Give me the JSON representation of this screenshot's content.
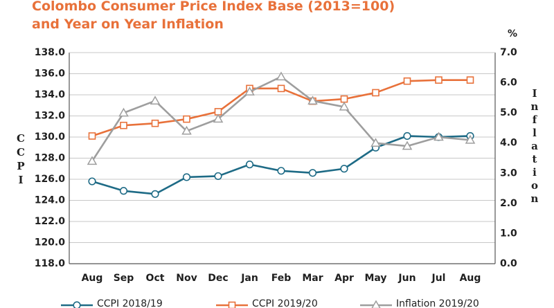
{
  "chart_data": {
    "type": "line",
    "title_lines": [
      "Colombo Consumer Price Index Base (2013=100)",
      "and Year on Year Inflation"
    ],
    "categories": [
      "Aug",
      "Sep",
      "Oct",
      "Nov",
      "Dec",
      "Jan",
      "Feb",
      "Mar",
      "Apr",
      "May",
      "Jun",
      "Jul",
      "Aug"
    ],
    "ylabel": "CCPI",
    "y2label": "Inflation",
    "y2unit": "%",
    "ylim": [
      118,
      138
    ],
    "y2lim": [
      0,
      7
    ],
    "yticks": [
      "118.0",
      "120.0",
      "122.0",
      "124.0",
      "126.0",
      "128.0",
      "130.0",
      "132.0",
      "134.0",
      "136.0",
      "138.0"
    ],
    "y2ticks": [
      "0.0",
      "1.0",
      "2.0",
      "3.0",
      "4.0",
      "5.0",
      "6.0",
      "7.0"
    ],
    "grid": true,
    "legend_position": "bottom",
    "series": [
      {
        "name": "CCPI 2018/19",
        "axis": "left",
        "color": "#1e6b86",
        "marker": "circle",
        "values": [
          125.8,
          124.9,
          124.6,
          126.2,
          126.3,
          127.4,
          126.8,
          126.6,
          127.0,
          129.0,
          130.1,
          130.0,
          130.1
        ]
      },
      {
        "name": "CCPI 2019/20",
        "axis": "left",
        "color": "#e8713a",
        "marker": "square",
        "values": [
          130.1,
          131.1,
          131.3,
          131.7,
          132.4,
          134.6,
          134.6,
          133.4,
          133.6,
          134.2,
          135.3,
          135.4,
          135.4
        ]
      },
      {
        "name": "Inflation 2019/20",
        "axis": "right",
        "color": "#9e9e9e",
        "marker": "triangle",
        "values": [
          3.4,
          5.0,
          5.4,
          4.4,
          4.8,
          5.7,
          6.2,
          5.4,
          5.2,
          4.0,
          3.9,
          4.2,
          4.1
        ]
      }
    ]
  }
}
